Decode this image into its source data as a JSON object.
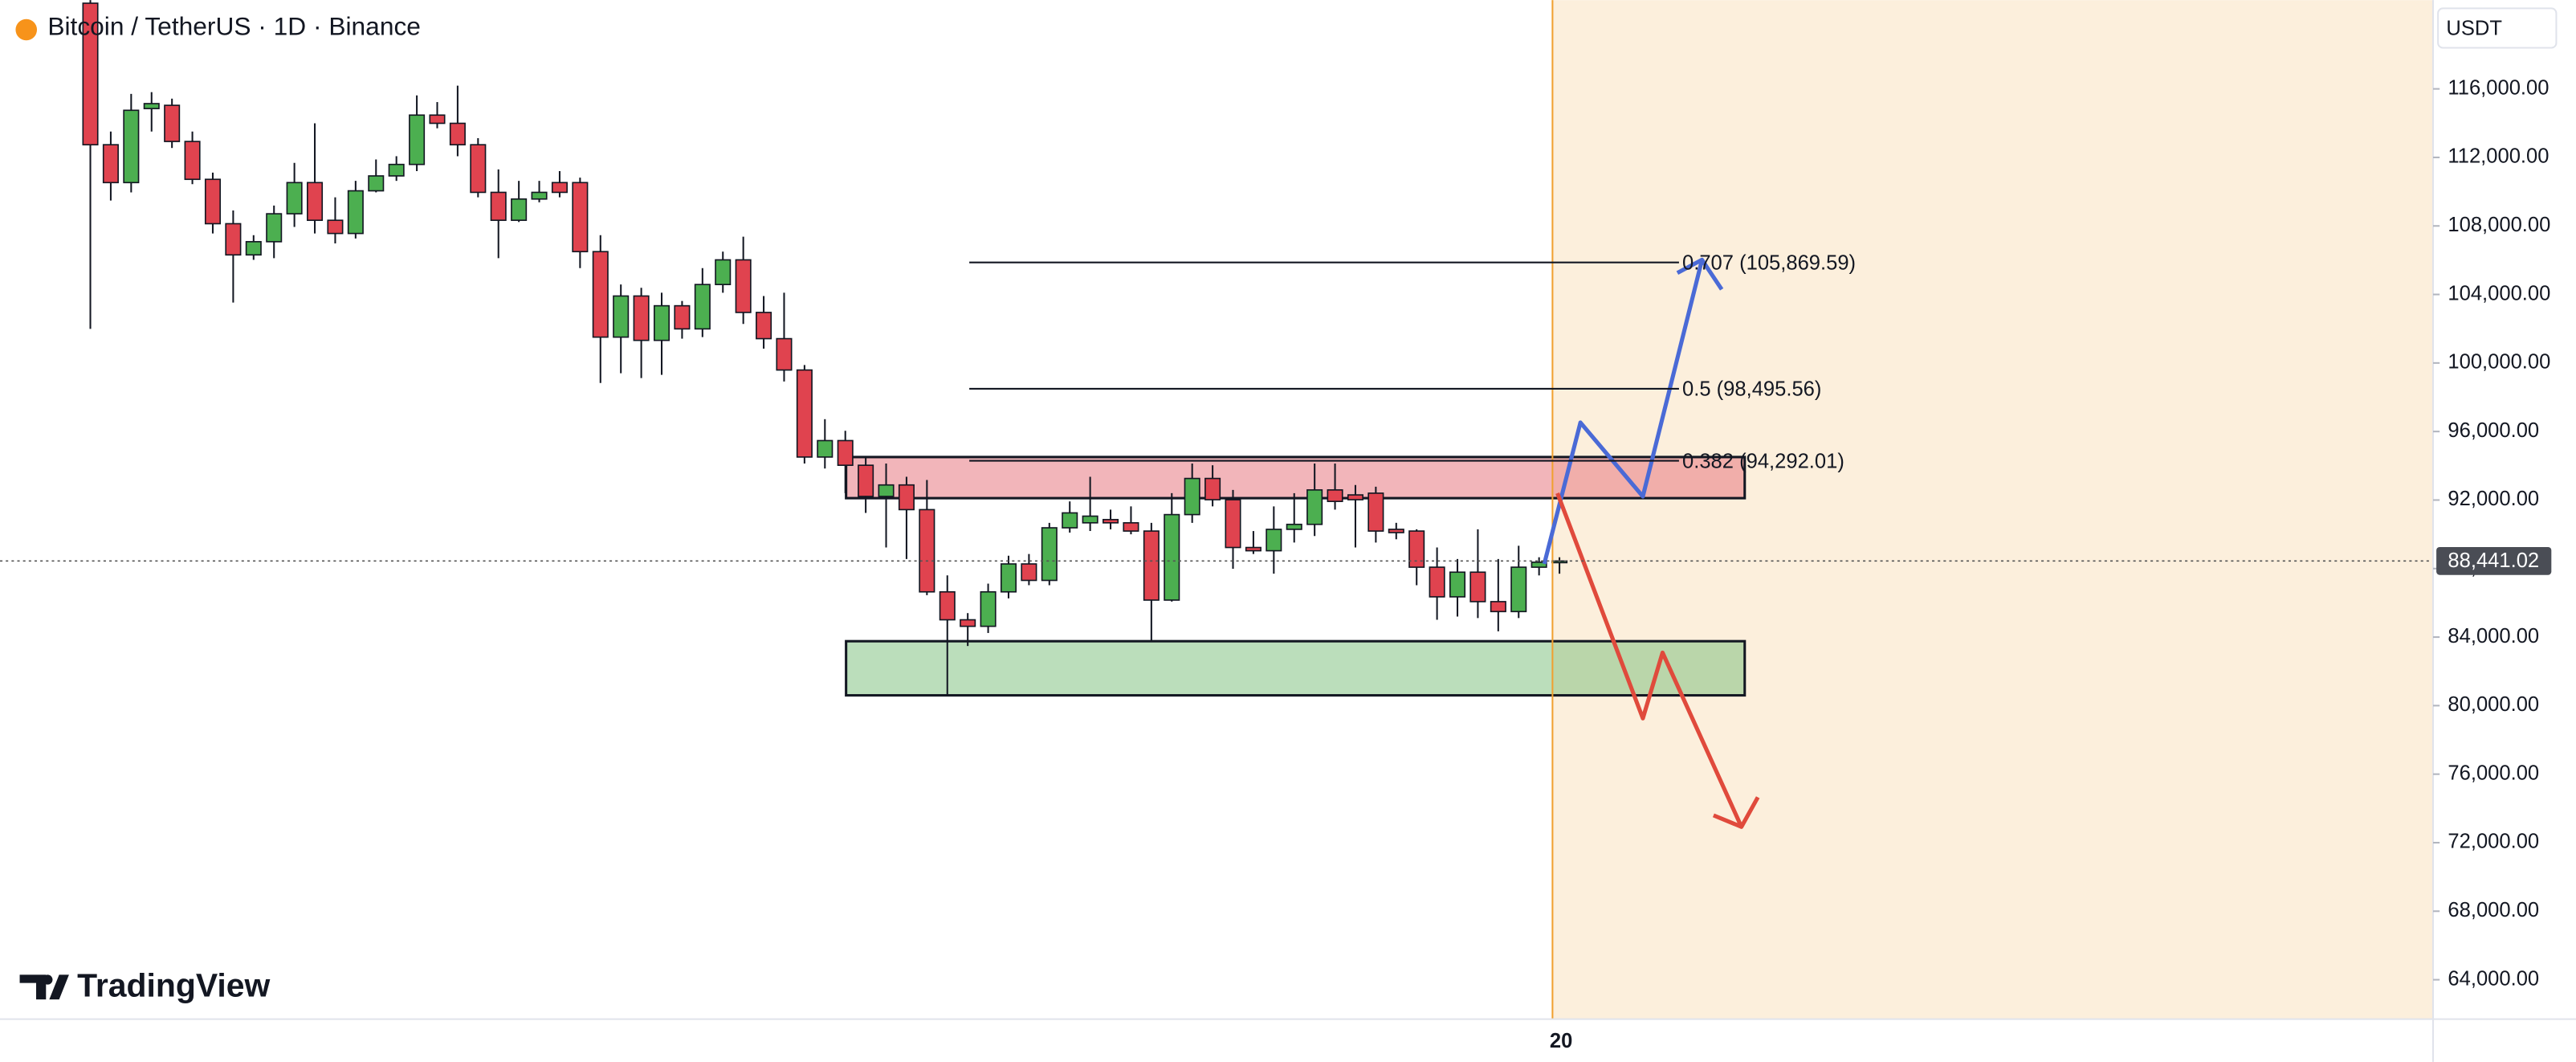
{
  "chart_data": {
    "type": "candlestick",
    "title": "Bitcoin / TetherUS · 1D · Binance",
    "currency": "USDT",
    "brand": "TradingView",
    "categories": [
      null,
      null,
      null,
      null,
      null,
      null,
      null,
      null,
      null,
      null,
      null,
      null,
      null,
      null,
      null,
      null,
      null,
      null,
      null,
      null,
      null,
      null,
      null,
      null,
      null,
      null,
      null,
      null,
      null,
      null,
      null,
      null,
      null,
      null,
      null,
      null,
      null,
      null,
      null,
      null,
      null,
      null,
      null,
      null,
      null,
      null,
      null,
      null,
      null,
      null,
      null,
      null,
      null,
      null,
      null,
      null,
      null,
      null,
      null,
      null,
      null,
      null,
      null,
      null,
      null,
      null,
      null,
      null,
      null,
      null,
      null,
      null,
      "20"
    ],
    "open": [
      121000,
      112740,
      110530,
      114850,
      115040,
      112930,
      110720,
      108130,
      106310,
      107080,
      108710,
      110530,
      108330,
      107560,
      110050,
      110920,
      111590,
      114470,
      113990,
      112740,
      109960,
      108330,
      109570,
      110530,
      110530,
      106500,
      101510,
      103910,
      101320,
      103340,
      101990,
      104580,
      106020,
      102950,
      101420,
      99590,
      94510,
      95470,
      94030,
      92210,
      92880,
      91440,
      86640,
      85010,
      84630,
      86640,
      88270,
      87310,
      90380,
      90670,
      90860,
      90670,
      90190,
      86160,
      91150,
      93260,
      92020,
      89230,
      89040,
      90290,
      90580,
      92590,
      92300,
      92400,
      90290,
      90190,
      88080,
      86350,
      87790,
      86070,
      85490,
      88080,
      88370
    ],
    "high": [
      121180,
      113510,
      115710,
      115810,
      115430,
      113510,
      111110,
      108900,
      107460,
      109190,
      111680,
      113990,
      109670,
      110630,
      111880,
      112070,
      115620,
      115230,
      116190,
      113120,
      111300,
      110630,
      110630,
      111200,
      110820,
      107460,
      104580,
      104390,
      104100,
      103620,
      105540,
      106500,
      107370,
      103910,
      104100,
      99880,
      96720,
      96040,
      94510,
      94130,
      93360,
      93170,
      87600,
      85400,
      87120,
      88750,
      88850,
      90670,
      91920,
      93360,
      91440,
      91630,
      90670,
      92400,
      94130,
      94030,
      92590,
      90190,
      91630,
      92400,
      94130,
      94130,
      92880,
      92780,
      90670,
      90290,
      89230,
      88560,
      90290,
      88560,
      89330,
      88660,
      88660
    ],
    "low": [
      101990,
      109480,
      109960,
      113510,
      112550,
      110440,
      107560,
      103530,
      106020,
      106120,
      107940,
      107560,
      106980,
      107270,
      109960,
      110630,
      111200,
      113700,
      112070,
      109670,
      106120,
      108230,
      109380,
      109670,
      105540,
      98830,
      99400,
      99120,
      99310,
      101420,
      101510,
      104100,
      102280,
      100840,
      98920,
      94130,
      93840,
      92400,
      91250,
      89230,
      88560,
      86450,
      80600,
      83480,
      84240,
      86260,
      87030,
      87030,
      90100,
      90190,
      90290,
      90000,
      83760,
      86070,
      90670,
      91630,
      87990,
      88850,
      87700,
      89520,
      89900,
      91440,
      89230,
      89520,
      89710,
      87030,
      85010,
      85200,
      85110,
      84340,
      85110,
      87600,
      87700
    ],
    "close": [
      112740,
      110530,
      114750,
      115140,
      112930,
      110720,
      108130,
      106310,
      107080,
      108710,
      110530,
      108330,
      107560,
      110050,
      110920,
      111590,
      114470,
      113990,
      112740,
      109960,
      108330,
      109570,
      109960,
      109960,
      106500,
      101510,
      103910,
      101320,
      103340,
      101990,
      104580,
      106020,
      102950,
      101420,
      99590,
      94510,
      95470,
      94030,
      92210,
      92880,
      91440,
      86640,
      85010,
      84630,
      86640,
      88270,
      87310,
      90380,
      91250,
      91060,
      90670,
      90190,
      86160,
      91150,
      93260,
      92020,
      89230,
      89040,
      90290,
      90580,
      92590,
      91920,
      92020,
      90190,
      90100,
      88080,
      86350,
      87790,
      86070,
      85490,
      88080,
      88370,
      88441.02
    ],
    "up_color": "#4caf50",
    "down_color": "#e0434f",
    "ylim": [
      61700,
      121180
    ],
    "yticks": [
      {
        "value": 64000,
        "label": "64,000.00"
      },
      {
        "value": 68000,
        "label": "68,000.00"
      },
      {
        "value": 72000,
        "label": "72,000.00"
      },
      {
        "value": 76000,
        "label": "76,000.00"
      },
      {
        "value": 80000,
        "label": "80,000.00"
      },
      {
        "value": 84000,
        "label": "84,000.00"
      },
      {
        "value": 88000,
        "label": "88,000.00"
      },
      {
        "value": 92000,
        "label": "92,000.00"
      },
      {
        "value": 96000,
        "label": "96,000.00"
      },
      {
        "value": 100000,
        "label": "100,000.00"
      },
      {
        "value": 104000,
        "label": "104,000.00"
      },
      {
        "value": 108000,
        "label": "108,000.00"
      },
      {
        "value": 112000,
        "label": "112,000.00"
      },
      {
        "value": 116000,
        "label": "116,000.00"
      }
    ],
    "last_price": {
      "value": 88441.02,
      "label": "88,441.02"
    },
    "fib_levels": [
      {
        "value": 105869.59,
        "label": "0.707 (105,869.59)"
      },
      {
        "value": 98495.56,
        "label": "0.5 (98,495.56)"
      },
      {
        "value": 94292.01,
        "label": "0.382 (94,292.01)"
      }
    ],
    "zones": [
      {
        "top": 94510,
        "bottom": 92110,
        "color": "rgba(232,120,130,0.55)"
      },
      {
        "top": 83760,
        "bottom": 80600,
        "color": "rgba(120,190,120,0.5)"
      }
    ]
  }
}
